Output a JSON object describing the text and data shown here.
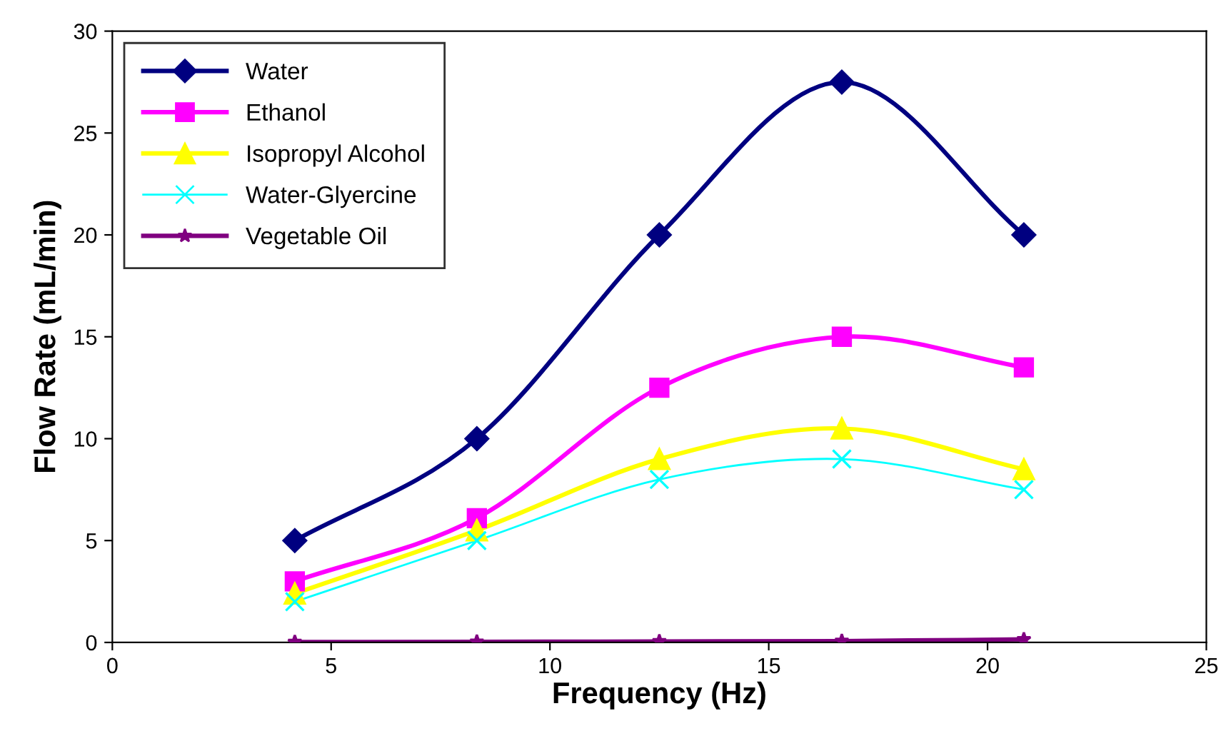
{
  "chart_data": {
    "type": "line",
    "xlabel": "Frequency (Hz)",
    "ylabel": "Flow Rate (mL/min)",
    "xlim": [
      0,
      25
    ],
    "xticks": [
      0,
      5,
      10,
      15,
      20,
      25
    ],
    "ylim": [
      0,
      30
    ],
    "yticks": [
      0,
      5,
      10,
      15,
      20,
      25,
      30
    ],
    "x": [
      4.17,
      8.33,
      12.5,
      16.67,
      20.83
    ],
    "grid": false,
    "legend": "top left",
    "line_style": "solid",
    "series": [
      {
        "name": "Water",
        "color": "#000080",
        "marker": "diamond",
        "values": [
          5,
          10,
          20,
          27.5,
          20
        ]
      },
      {
        "name": "Ethanol",
        "color": "#ff00ff",
        "marker": "square",
        "values": [
          3.0,
          6.1,
          12.5,
          15.0,
          13.5
        ]
      },
      {
        "name": "Isopropyl Alcohol",
        "color": "#ffff00",
        "marker": "triangle",
        "values": [
          2.4,
          5.5,
          9.0,
          10.5,
          8.5
        ]
      },
      {
        "name": "Water-Glyercine",
        "color": "#00ffff",
        "marker": "cross",
        "values": [
          2.0,
          5.0,
          8.0,
          9.0,
          7.5
        ]
      },
      {
        "name": "Vegetable Oil",
        "color": "#800080",
        "marker": "star",
        "values": [
          0.02,
          0.03,
          0.05,
          0.07,
          0.15
        ]
      }
    ]
  }
}
